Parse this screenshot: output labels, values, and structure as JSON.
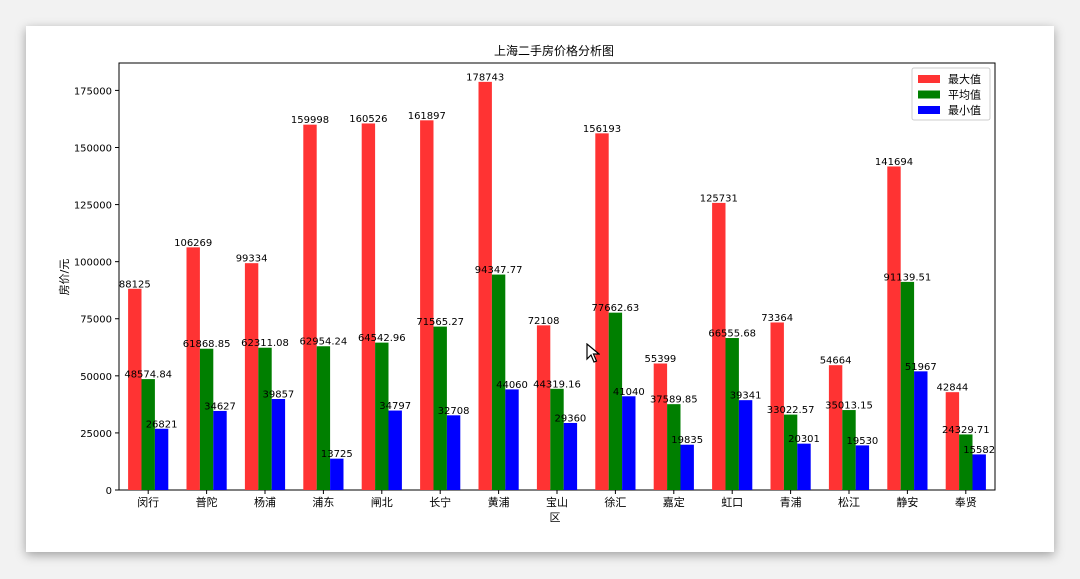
{
  "chart_data": {
    "type": "bar",
    "title": "上海二手房价格分析图",
    "xlabel": "区",
    "ylabel": "房价/元",
    "ylim": [
      0,
      187000
    ],
    "yticks": [
      0,
      25000,
      50000,
      75000,
      100000,
      125000,
      150000,
      175000
    ],
    "grid": false,
    "legend_position": "top-right",
    "categories": [
      "闵行",
      "普陀",
      "杨浦",
      "浦东",
      "闸北",
      "长宁",
      "黄浦",
      "宝山",
      "徐汇",
      "嘉定",
      "虹口",
      "青浦",
      "松江",
      "静安",
      "奉贤"
    ],
    "series": [
      {
        "name": "最大值",
        "color": "#ff3333",
        "values": [
          88125,
          106269,
          99334,
          159998,
          160526,
          161897,
          178743,
          72108,
          156193,
          55399,
          125731,
          73364,
          54664,
          141694,
          42844
        ],
        "labels": [
          "88125",
          "106269",
          "99334",
          "159998",
          "160526",
          "161897",
          "178743",
          "72108",
          "156193",
          "55399",
          "125731",
          "73364",
          "54664",
          "141694",
          "42844"
        ]
      },
      {
        "name": "平均值",
        "color": "#007f00",
        "values": [
          48574.84,
          61868.85,
          62311.08,
          62954.24,
          64542.96,
          71565.27,
          94347.77,
          44319.16,
          77662.63,
          37589.85,
          66555.68,
          33022.57,
          35013.15,
          91139.51,
          24329.71
        ],
        "labels": [
          "48574.84",
          "61868.85",
          "62311.08",
          "62954.24",
          "64542.96",
          "71565.27",
          "94347.77",
          "44319.16",
          "77662.63",
          "37589.85",
          "66555.68",
          "33022.57",
          "35013.15",
          "91139.51",
          "24329.71"
        ]
      },
      {
        "name": "最小值",
        "color": "#0000ff",
        "values": [
          26821,
          34627,
          39857,
          13725,
          34797,
          32708,
          44060,
          29360,
          41040,
          19835,
          39341,
          20301,
          19530,
          51967,
          15582
        ],
        "labels": [
          "26821",
          "34627",
          "39857",
          "13725",
          "34797",
          "32708",
          "44060",
          "29360",
          "41040",
          "19835",
          "39341",
          "20301",
          "19530",
          "51967",
          "15582"
        ]
      }
    ]
  }
}
